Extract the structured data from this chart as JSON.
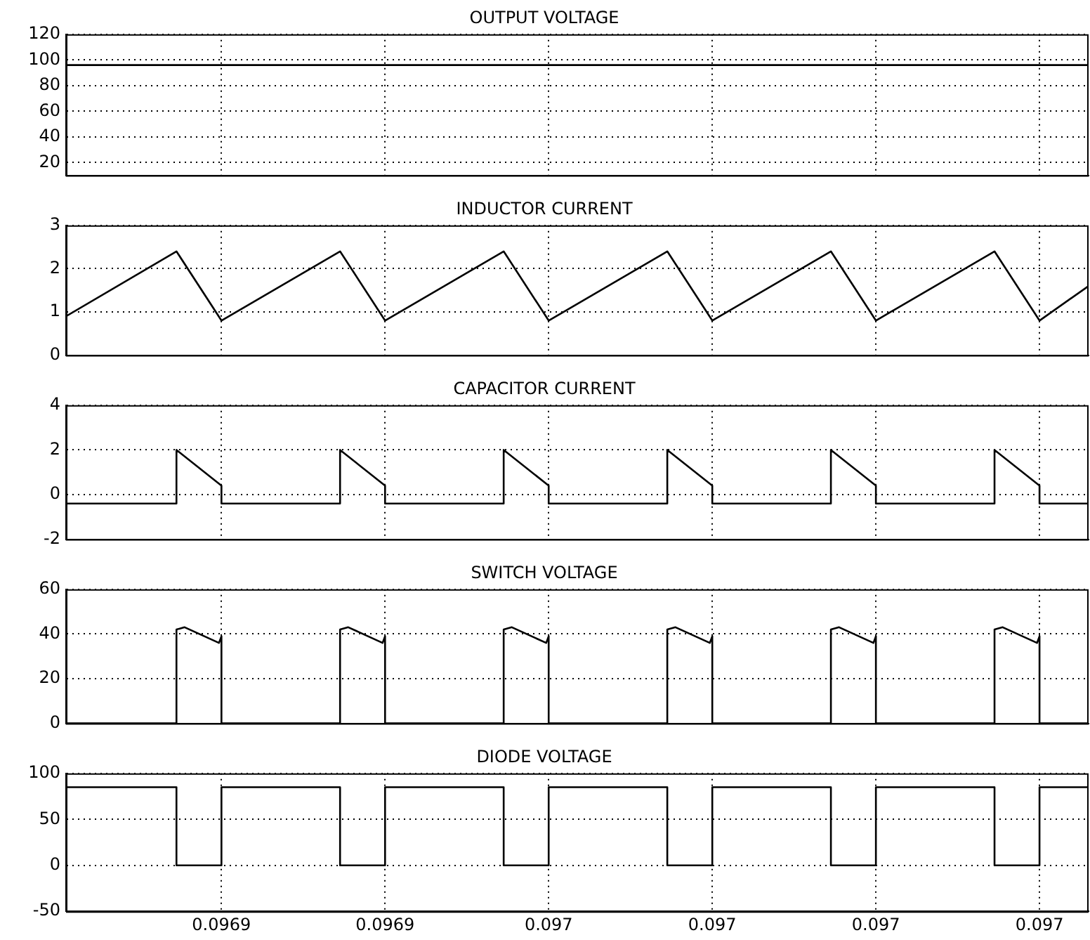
{
  "chart_data": [
    {
      "type": "line",
      "title": "OUTPUT VOLTAGE",
      "color": "#000000",
      "marker": "none",
      "grid": true,
      "tick_labels": "y",
      "x": [
        0.096901,
        0.097026
      ],
      "values": [
        96,
        96
      ],
      "xlim": [
        0.096901,
        0.097026
      ],
      "xticks": [
        {
          "value": 0.09692,
          "label": null
        },
        {
          "value": 0.09694,
          "label": null
        },
        {
          "value": 0.09696,
          "label": null
        },
        {
          "value": 0.09698,
          "label": null
        },
        {
          "value": 0.097,
          "label": null
        },
        {
          "value": 0.09702,
          "label": null
        }
      ],
      "ylim": [
        10,
        120
      ],
      "yticks": [
        20,
        40,
        60,
        80,
        100,
        120
      ]
    },
    {
      "type": "line",
      "title": "INDUCTOR CURRENT",
      "color": "#000000",
      "marker": "none",
      "grid": true,
      "tick_labels": "y",
      "x": [
        0.096901,
        0.0969145,
        0.09692,
        0.0969345,
        0.09694,
        0.0969545,
        0.09696,
        0.0969745,
        0.09698,
        0.0969945,
        0.097,
        0.0970145,
        0.09702,
        0.097026
      ],
      "values": [
        0.9,
        2.4,
        0.8,
        2.4,
        0.8,
        2.4,
        0.8,
        2.4,
        0.8,
        2.4,
        0.8,
        2.4,
        0.8,
        1.6
      ],
      "xlim": [
        0.096901,
        0.097026
      ],
      "xticks": [
        {
          "value": 0.09692,
          "label": null
        },
        {
          "value": 0.09694,
          "label": null
        },
        {
          "value": 0.09696,
          "label": null
        },
        {
          "value": 0.09698,
          "label": null
        },
        {
          "value": 0.097,
          "label": null
        },
        {
          "value": 0.09702,
          "label": null
        }
      ],
      "ylim": [
        0,
        3
      ],
      "yticks": [
        0,
        1,
        2,
        3
      ]
    },
    {
      "type": "line",
      "title": "CAPACITOR CURRENT",
      "color": "#000000",
      "marker": "none",
      "grid": true,
      "tick_labels": "y",
      "x": [
        0.096901,
        0.0969145,
        0.0969145,
        0.09692,
        0.09692,
        0.0969345,
        0.0969345,
        0.09694,
        0.09694,
        0.0969545,
        0.0969545,
        0.09696,
        0.09696,
        0.0969745,
        0.0969745,
        0.09698,
        0.09698,
        0.0969945,
        0.0969945,
        0.097,
        0.097,
        0.0970145,
        0.0970145,
        0.09702,
        0.09702,
        0.097026
      ],
      "values": [
        -0.4,
        -0.4,
        2,
        0.4,
        -0.4,
        -0.4,
        2,
        0.4,
        -0.4,
        -0.4,
        2,
        0.4,
        -0.4,
        -0.4,
        2,
        0.4,
        -0.4,
        -0.4,
        2,
        0.4,
        -0.4,
        -0.4,
        2,
        0.4,
        -0.4,
        -0.4
      ],
      "xlim": [
        0.096901,
        0.097026
      ],
      "xticks": [
        {
          "value": 0.09692,
          "label": null
        },
        {
          "value": 0.09694,
          "label": null
        },
        {
          "value": 0.09696,
          "label": null
        },
        {
          "value": 0.09698,
          "label": null
        },
        {
          "value": 0.097,
          "label": null
        },
        {
          "value": 0.09702,
          "label": null
        }
      ],
      "ylim": [
        -2,
        4
      ],
      "yticks": [
        -2,
        0,
        2,
        4
      ]
    },
    {
      "type": "line",
      "title": "SWITCH VOLTAGE",
      "color": "#000000",
      "marker": "none",
      "grid": true,
      "tick_labels": "y",
      "x": [
        0.096901,
        0.0969145,
        0.0969145,
        0.0969155,
        0.0969197,
        0.09692,
        0.09692,
        0.0969345,
        0.0969345,
        0.0969355,
        0.0969397,
        0.09694,
        0.09694,
        0.0969545,
        0.0969545,
        0.0969555,
        0.0969597,
        0.09696,
        0.09696,
        0.0969745,
        0.0969745,
        0.0969755,
        0.0969797,
        0.09698,
        0.09698,
        0.0969945,
        0.0969945,
        0.0969955,
        0.0969997,
        0.097,
        0.097,
        0.0970145,
        0.0970145,
        0.0970155,
        0.0970197,
        0.09702,
        0.09702,
        0.097026
      ],
      "values": [
        0,
        0,
        42,
        43,
        36,
        39,
        0,
        0,
        42,
        43,
        36,
        39,
        0,
        0,
        42,
        43,
        36,
        39,
        0,
        0,
        42,
        43,
        36,
        39,
        0,
        0,
        42,
        43,
        36,
        39,
        0,
        0,
        42,
        43,
        36,
        39,
        0,
        0
      ],
      "xlim": [
        0.096901,
        0.097026
      ],
      "xticks": [
        {
          "value": 0.09692,
          "label": null
        },
        {
          "value": 0.09694,
          "label": null
        },
        {
          "value": 0.09696,
          "label": null
        },
        {
          "value": 0.09698,
          "label": null
        },
        {
          "value": 0.097,
          "label": null
        },
        {
          "value": 0.09702,
          "label": null
        }
      ],
      "ylim": [
        0,
        60
      ],
      "yticks": [
        0,
        20,
        40,
        60
      ]
    },
    {
      "type": "line",
      "title": "DIODE VOLTAGE",
      "color": "#000000",
      "marker": "none",
      "grid": true,
      "x": [
        0.096901,
        0.0969145,
        0.0969145,
        0.09692,
        0.09692,
        0.0969345,
        0.0969345,
        0.09694,
        0.09694,
        0.0969545,
        0.0969545,
        0.09696,
        0.09696,
        0.0969745,
        0.0969745,
        0.09698,
        0.09698,
        0.0969945,
        0.0969945,
        0.097,
        0.097,
        0.0970145,
        0.0970145,
        0.09702,
        0.09702,
        0.097026
      ],
      "values": [
        85,
        85,
        0,
        0,
        85,
        85,
        0,
        0,
        85,
        85,
        0,
        0,
        85,
        85,
        0,
        0,
        85,
        85,
        0,
        0,
        85,
        85,
        0,
        0,
        85,
        85
      ],
      "xlim": [
        0.096901,
        0.097026
      ],
      "xticks": [
        {
          "value": 0.09692,
          "label": "0.0969"
        },
        {
          "value": 0.09694,
          "label": "0.0969"
        },
        {
          "value": 0.09696,
          "label": "0.097"
        },
        {
          "value": 0.09698,
          "label": "0.097"
        },
        {
          "value": 0.097,
          "label": "0.097"
        },
        {
          "value": 0.09702,
          "label": "0.097"
        }
      ],
      "ylim": [
        -50,
        100
      ],
      "yticks": [
        -50,
        0,
        50,
        100
      ]
    }
  ]
}
